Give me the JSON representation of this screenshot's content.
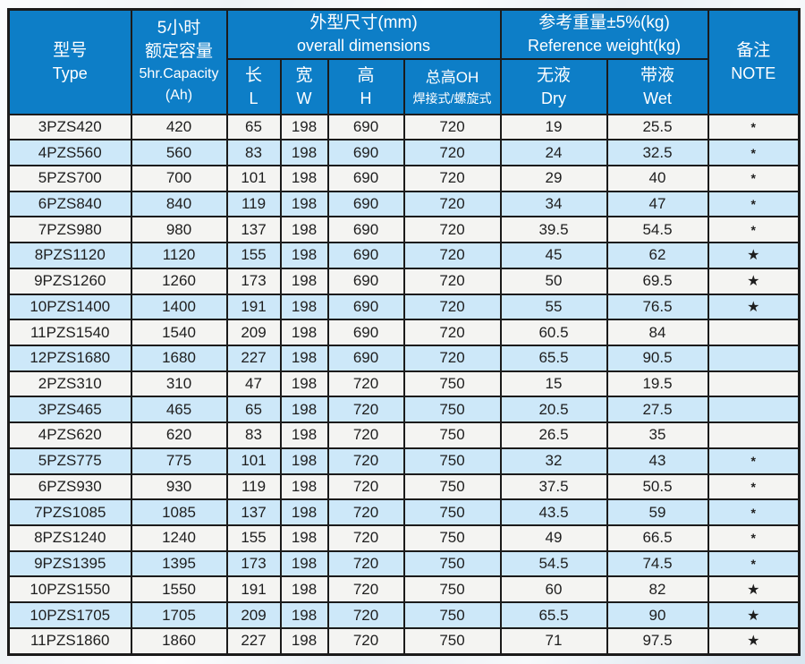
{
  "table": {
    "header": {
      "type": {
        "zh": "型号",
        "en": "Type"
      },
      "capacity": {
        "zh1": "5小时",
        "zh2": "额定容量",
        "en": "5hr.Capacity",
        "unit": "(Ah)"
      },
      "dimensions": {
        "zh": "外型尺寸(mm)",
        "en": "overall dimensions",
        "length": {
          "zh": "长",
          "en": "L"
        },
        "width": {
          "zh": "宽",
          "en": "W"
        },
        "height": {
          "zh": "高",
          "en": "H"
        },
        "overall_height": {
          "zh": "总高OH",
          "sub": "焊接式/螺旋式"
        }
      },
      "weight": {
        "zh": "参考重量±5%(kg)",
        "en": "Reference weight(kg)",
        "dry": {
          "zh": "无液",
          "en": "Dry"
        },
        "wet": {
          "zh": "带液",
          "en": "Wet"
        }
      },
      "note": {
        "zh": "备注",
        "en": "NOTE"
      }
    },
    "col_names": [
      "cell-type",
      "cell-capacity",
      "cell-length",
      "cell-width",
      "cell-height",
      "cell-overall-height",
      "cell-dry-weight",
      "cell-wet-weight",
      "cell-note"
    ],
    "rows": [
      [
        "3PZS420",
        "420",
        "65",
        "198",
        "690",
        "720",
        "19",
        "25.5",
        "*"
      ],
      [
        "4PZS560",
        "560",
        "83",
        "198",
        "690",
        "720",
        "24",
        "32.5",
        "*"
      ],
      [
        "5PZS700",
        "700",
        "101",
        "198",
        "690",
        "720",
        "29",
        "40",
        "*"
      ],
      [
        "6PZS840",
        "840",
        "119",
        "198",
        "690",
        "720",
        "34",
        "47",
        "*"
      ],
      [
        "7PZS980",
        "980",
        "137",
        "198",
        "690",
        "720",
        "39.5",
        "54.5",
        "*"
      ],
      [
        "8PZS1120",
        "1120",
        "155",
        "198",
        "690",
        "720",
        "45",
        "62",
        "★"
      ],
      [
        "9PZS1260",
        "1260",
        "173",
        "198",
        "690",
        "720",
        "50",
        "69.5",
        "★"
      ],
      [
        "10PZS1400",
        "1400",
        "191",
        "198",
        "690",
        "720",
        "55",
        "76.5",
        "★"
      ],
      [
        "11PZS1540",
        "1540",
        "209",
        "198",
        "690",
        "720",
        "60.5",
        "84",
        ""
      ],
      [
        "12PZS1680",
        "1680",
        "227",
        "198",
        "690",
        "720",
        "65.5",
        "90.5",
        ""
      ],
      [
        "2PZS310",
        "310",
        "47",
        "198",
        "720",
        "750",
        "15",
        "19.5",
        ""
      ],
      [
        "3PZS465",
        "465",
        "65",
        "198",
        "720",
        "750",
        "20.5",
        "27.5",
        ""
      ],
      [
        "4PZS620",
        "620",
        "83",
        "198",
        "720",
        "750",
        "26.5",
        "35",
        ""
      ],
      [
        "5PZS775",
        "775",
        "101",
        "198",
        "720",
        "750",
        "32",
        "43",
        "*"
      ],
      [
        "6PZS930",
        "930",
        "119",
        "198",
        "720",
        "750",
        "37.5",
        "50.5",
        "*"
      ],
      [
        "7PZS1085",
        "1085",
        "137",
        "198",
        "720",
        "750",
        "43.5",
        "59",
        "*"
      ],
      [
        "8PZS1240",
        "1240",
        "155",
        "198",
        "720",
        "750",
        "49",
        "66.5",
        "*"
      ],
      [
        "9PZS1395",
        "1395",
        "173",
        "198",
        "720",
        "750",
        "54.5",
        "74.5",
        "*"
      ],
      [
        "10PZS1550",
        "1550",
        "191",
        "198",
        "720",
        "750",
        "60",
        "82",
        "★"
      ],
      [
        "10PZS1705",
        "1705",
        "209",
        "198",
        "720",
        "750",
        "65.5",
        "90",
        "★"
      ],
      [
        "11PZS1860",
        "1860",
        "227",
        "198",
        "720",
        "750",
        "71",
        "97.5",
        "★"
      ]
    ]
  },
  "colors": {
    "header_blue": "#0d7ec7",
    "row_white": "#f4f4f2",
    "row_blue": "#cde8f9",
    "border": "#1b1b1b",
    "header_text": "#ffffff",
    "cell_text": "#1e1e1e"
  }
}
